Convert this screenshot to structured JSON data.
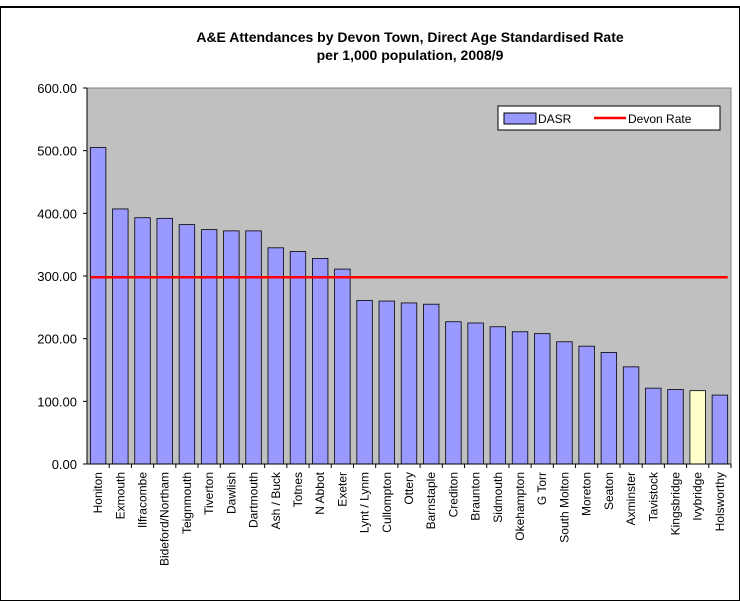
{
  "chart_data": {
    "type": "bar",
    "title_line1": "A&E Attendances by Devon Town, Direct Age Standardised Rate",
    "title_line2": "per 1,000 population, 2008/9",
    "categories": [
      "Honiton",
      "Exmouth",
      "Ilfracombe",
      "Bideford/Northam",
      "Teignmouth",
      "Tiverton",
      "Dawlish",
      "Dartmouth",
      "Ash / Buck",
      "Totnes",
      "N Abbot",
      "Exeter",
      "Lynt / Lynm",
      "Cullompton",
      "Ottery",
      "Barnstaple",
      "Crediton",
      "Braunton",
      "Sidmouth",
      "Okehampton",
      "G Torr",
      "South Molton",
      "Moreton",
      "Seaton",
      "Axminster",
      "Tavistock",
      "Kingsbridge",
      "Ivybridge",
      "Holsworthy"
    ],
    "series": [
      {
        "name": "DASR",
        "values": [
          505,
          407,
          393,
          392,
          382,
          374,
          372,
          372,
          345,
          339,
          328,
          311,
          261,
          260,
          257,
          255,
          227,
          225,
          219,
          211,
          208,
          195,
          188,
          178,
          155,
          121,
          119,
          117,
          110
        ],
        "color": "#9999ff",
        "highlight_index": 27,
        "highlight_color": "#ffffcc"
      },
      {
        "name": "Devon Rate",
        "value": 298,
        "color": "#ff0000"
      }
    ],
    "yticks": [
      "0.00",
      "100.00",
      "200.00",
      "300.00",
      "400.00",
      "500.00",
      "600.00"
    ],
    "ylim": [
      0,
      600
    ],
    "plot_bg": "#c0c0c0",
    "legend_position": "top-right"
  }
}
